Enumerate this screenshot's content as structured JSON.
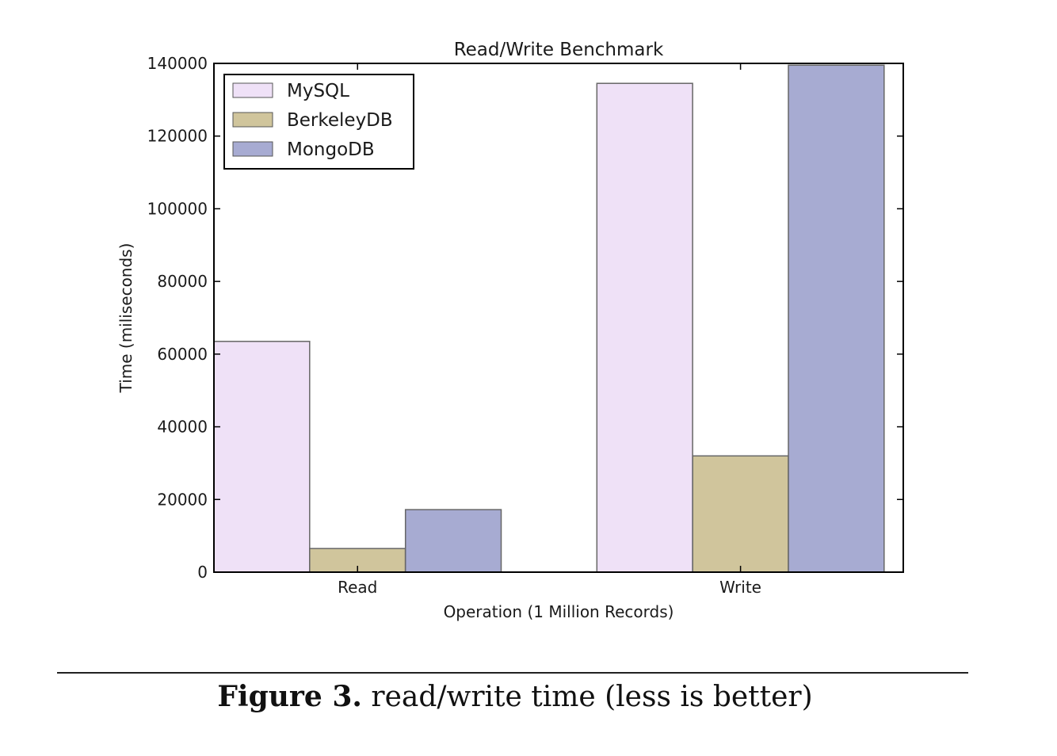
{
  "chart_data": {
    "type": "bar",
    "title": "Read/Write Benchmark",
    "xlabel": "Operation (1 Million Records)",
    "ylabel": "Time (miliseconds)",
    "categories": [
      "Read",
      "Write"
    ],
    "series": [
      {
        "name": "MySQL",
        "values": [
          63500,
          134500
        ],
        "color": "#efe1f7"
      },
      {
        "name": "BerkeleyDB",
        "values": [
          6500,
          32000
        ],
        "color": "#d0c59c"
      },
      {
        "name": "MongoDB",
        "values": [
          17200,
          139500
        ],
        "color": "#a7abd2"
      }
    ],
    "ylim": [
      0,
      140000
    ],
    "yticks": [
      0,
      20000,
      40000,
      60000,
      80000,
      100000,
      120000,
      140000
    ],
    "ytick_labels": [
      "0",
      "20000",
      "40000",
      "60000",
      "80000",
      "100000",
      "120000",
      "140000"
    ],
    "legend_position": "upper-left",
    "grid": false
  },
  "caption": {
    "label": "Figure 3.",
    "text": "read/write time (less is better)"
  }
}
